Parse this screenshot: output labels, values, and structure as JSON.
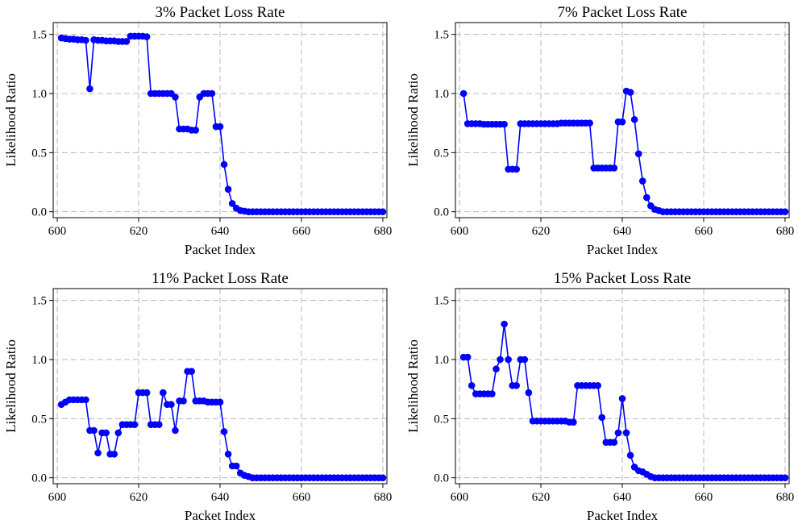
{
  "style": {
    "series_color": "#0000ff",
    "grid_color": "#b8b8b8",
    "grid_style": "dashed"
  },
  "chart_data": [
    {
      "type": "line",
      "title": "3% Packet Loss Rate",
      "xlabel": "Packet Index",
      "ylabel": "Likelihood Ratio",
      "xlim": [
        599,
        681
      ],
      "ylim": [
        -0.05,
        1.6
      ],
      "xticks": [
        "600",
        "620",
        "640",
        "660",
        "680"
      ],
      "yticks": [
        "0.0",
        "0.5",
        "1.0",
        "1.5"
      ],
      "grid": true,
      "series": [
        {
          "x": [
            601,
            602,
            603,
            604,
            605,
            606,
            607,
            608,
            609,
            610,
            611,
            612,
            613,
            614,
            615,
            616,
            617,
            618,
            619,
            620,
            621,
            622,
            623,
            624,
            625,
            626,
            627,
            628,
            629,
            630,
            631,
            632,
            633,
            634,
            635,
            636,
            637,
            638,
            639,
            640,
            641,
            642,
            643,
            644,
            645,
            646,
            647,
            648,
            649,
            650,
            651,
            652,
            653,
            654,
            655,
            656,
            657,
            658,
            659,
            660,
            661,
            662,
            663,
            664,
            665,
            666,
            667,
            668,
            669,
            670,
            671,
            672,
            673,
            674,
            675,
            676,
            677,
            678,
            679,
            680
          ],
          "y": [
            1.47,
            1.465,
            1.46,
            1.46,
            1.455,
            1.455,
            1.45,
            1.04,
            1.455,
            1.45,
            1.45,
            1.445,
            1.445,
            1.445,
            1.44,
            1.44,
            1.44,
            1.485,
            1.485,
            1.485,
            1.485,
            1.48,
            1.0,
            1.0,
            1.0,
            1.0,
            1.0,
            1.0,
            0.97,
            0.7,
            0.7,
            0.7,
            0.69,
            0.69,
            0.97,
            1.0,
            1.0,
            1.0,
            0.72,
            0.72,
            0.4,
            0.19,
            0.07,
            0.03,
            0.01,
            0.005,
            0.0,
            0.0,
            0.0,
            0.0,
            0.0,
            0.0,
            0.0,
            0.0,
            0.0,
            0.0,
            0.0,
            0.0,
            0.0,
            0.0,
            0.0,
            0.0,
            0.0,
            0.0,
            0.0,
            0.0,
            0.0,
            0.0,
            0.0,
            0.0,
            0.0,
            0.0,
            0.0,
            0.0,
            0.0,
            0.0,
            0.0,
            0.0,
            0.0,
            0.0
          ]
        }
      ]
    },
    {
      "type": "line",
      "title": "7% Packet Loss Rate",
      "xlabel": "Packet Index",
      "ylabel": "Likelihood Ratio",
      "xlim": [
        599,
        681
      ],
      "ylim": [
        -0.05,
        1.6
      ],
      "xticks": [
        "600",
        "620",
        "640",
        "660",
        "680"
      ],
      "yticks": [
        "0.0",
        "0.5",
        "1.0",
        "1.5"
      ],
      "grid": true,
      "series": [
        {
          "x": [
            601,
            602,
            603,
            604,
            605,
            606,
            607,
            608,
            609,
            610,
            611,
            612,
            613,
            614,
            615,
            616,
            617,
            618,
            619,
            620,
            621,
            622,
            623,
            624,
            625,
            626,
            627,
            628,
            629,
            630,
            631,
            632,
            633,
            634,
            635,
            636,
            637,
            638,
            639,
            640,
            641,
            642,
            643,
            644,
            645,
            646,
            647,
            648,
            649,
            650,
            651,
            652,
            653,
            654,
            655,
            656,
            657,
            658,
            659,
            660,
            661,
            662,
            663,
            664,
            665,
            666,
            667,
            668,
            669,
            670,
            671,
            672,
            673,
            674,
            675,
            676,
            677,
            678,
            679,
            680
          ],
          "y": [
            1.0,
            0.745,
            0.745,
            0.745,
            0.745,
            0.74,
            0.74,
            0.74,
            0.74,
            0.74,
            0.74,
            0.36,
            0.36,
            0.36,
            0.745,
            0.745,
            0.745,
            0.745,
            0.745,
            0.745,
            0.745,
            0.745,
            0.745,
            0.745,
            0.75,
            0.75,
            0.75,
            0.75,
            0.75,
            0.75,
            0.75,
            0.75,
            0.37,
            0.37,
            0.37,
            0.37,
            0.37,
            0.37,
            0.76,
            0.76,
            1.02,
            1.01,
            0.78,
            0.49,
            0.26,
            0.12,
            0.05,
            0.02,
            0.01,
            0.0,
            0.0,
            0.0,
            0.0,
            0.0,
            0.0,
            0.0,
            0.0,
            0.0,
            0.0,
            0.0,
            0.0,
            0.0,
            0.0,
            0.0,
            0.0,
            0.0,
            0.0,
            0.0,
            0.0,
            0.0,
            0.0,
            0.0,
            0.0,
            0.0,
            0.0,
            0.0,
            0.0,
            0.0,
            0.0,
            0.0
          ]
        }
      ]
    },
    {
      "type": "line",
      "title": "11% Packet Loss Rate",
      "xlabel": "Packet Index",
      "ylabel": "Likelihood Ratio",
      "xlim": [
        599,
        681
      ],
      "ylim": [
        -0.05,
        1.6
      ],
      "xticks": [
        "600",
        "620",
        "640",
        "660",
        "680"
      ],
      "yticks": [
        "0.0",
        "0.5",
        "1.0",
        "1.5"
      ],
      "grid": true,
      "series": [
        {
          "x": [
            601,
            602,
            603,
            604,
            605,
            606,
            607,
            608,
            609,
            610,
            611,
            612,
            613,
            614,
            615,
            616,
            617,
            618,
            619,
            620,
            621,
            622,
            623,
            624,
            625,
            626,
            627,
            628,
            629,
            630,
            631,
            632,
            633,
            634,
            635,
            636,
            637,
            638,
            639,
            640,
            641,
            642,
            643,
            644,
            645,
            646,
            647,
            648,
            649,
            650,
            651,
            652,
            653,
            654,
            655,
            656,
            657,
            658,
            659,
            660,
            661,
            662,
            663,
            664,
            665,
            666,
            667,
            668,
            669,
            670,
            671,
            672,
            673,
            674,
            675,
            676,
            677,
            678,
            679,
            680
          ],
          "y": [
            0.62,
            0.64,
            0.66,
            0.66,
            0.66,
            0.66,
            0.66,
            0.4,
            0.4,
            0.21,
            0.38,
            0.38,
            0.2,
            0.2,
            0.38,
            0.45,
            0.45,
            0.45,
            0.45,
            0.72,
            0.72,
            0.72,
            0.45,
            0.45,
            0.45,
            0.72,
            0.62,
            0.62,
            0.4,
            0.65,
            0.65,
            0.9,
            0.9,
            0.65,
            0.65,
            0.65,
            0.64,
            0.64,
            0.64,
            0.64,
            0.39,
            0.2,
            0.1,
            0.1,
            0.04,
            0.02,
            0.01,
            0.0,
            0.0,
            0.0,
            0.0,
            0.0,
            0.0,
            0.0,
            0.0,
            0.0,
            0.0,
            0.0,
            0.0,
            0.0,
            0.0,
            0.0,
            0.0,
            0.0,
            0.0,
            0.0,
            0.0,
            0.0,
            0.0,
            0.0,
            0.0,
            0.0,
            0.0,
            0.0,
            0.0,
            0.0,
            0.0,
            0.0,
            0.0,
            0.0
          ]
        }
      ]
    },
    {
      "type": "line",
      "title": "15% Packet Loss Rate",
      "xlabel": "Packet Index",
      "ylabel": "Likelihood Ratio",
      "xlim": [
        599,
        681
      ],
      "ylim": [
        -0.05,
        1.6
      ],
      "xticks": [
        "600",
        "620",
        "640",
        "660",
        "680"
      ],
      "yticks": [
        "0.0",
        "0.5",
        "1.0",
        "1.5"
      ],
      "grid": true,
      "series": [
        {
          "x": [
            601,
            602,
            603,
            604,
            605,
            606,
            607,
            608,
            609,
            610,
            611,
            612,
            613,
            614,
            615,
            616,
            617,
            618,
            619,
            620,
            621,
            622,
            623,
            624,
            625,
            626,
            627,
            628,
            629,
            630,
            631,
            632,
            633,
            634,
            635,
            636,
            637,
            638,
            639,
            640,
            641,
            642,
            643,
            644,
            645,
            646,
            647,
            648,
            649,
            650,
            651,
            652,
            653,
            654,
            655,
            656,
            657,
            658,
            659,
            660,
            661,
            662,
            663,
            664,
            665,
            666,
            667,
            668,
            669,
            670,
            671,
            672,
            673,
            674,
            675,
            676,
            677,
            678,
            679,
            680
          ],
          "y": [
            1.02,
            1.02,
            0.78,
            0.71,
            0.71,
            0.71,
            0.71,
            0.71,
            0.92,
            1.0,
            1.3,
            1.0,
            0.78,
            0.78,
            1.0,
            1.0,
            0.72,
            0.48,
            0.48,
            0.48,
            0.48,
            0.48,
            0.48,
            0.48,
            0.48,
            0.48,
            0.47,
            0.47,
            0.78,
            0.78,
            0.78,
            0.78,
            0.78,
            0.78,
            0.51,
            0.3,
            0.3,
            0.3,
            0.38,
            0.67,
            0.38,
            0.19,
            0.09,
            0.06,
            0.05,
            0.03,
            0.01,
            0.0,
            0.0,
            0.0,
            0.0,
            0.0,
            0.0,
            0.0,
            0.0,
            0.0,
            0.0,
            0.0,
            0.0,
            0.0,
            0.0,
            0.0,
            0.0,
            0.0,
            0.0,
            0.0,
            0.0,
            0.0,
            0.0,
            0.0,
            0.0,
            0.0,
            0.0,
            0.0,
            0.0,
            0.0,
            0.0,
            0.0,
            0.0,
            0.0
          ]
        }
      ]
    }
  ]
}
